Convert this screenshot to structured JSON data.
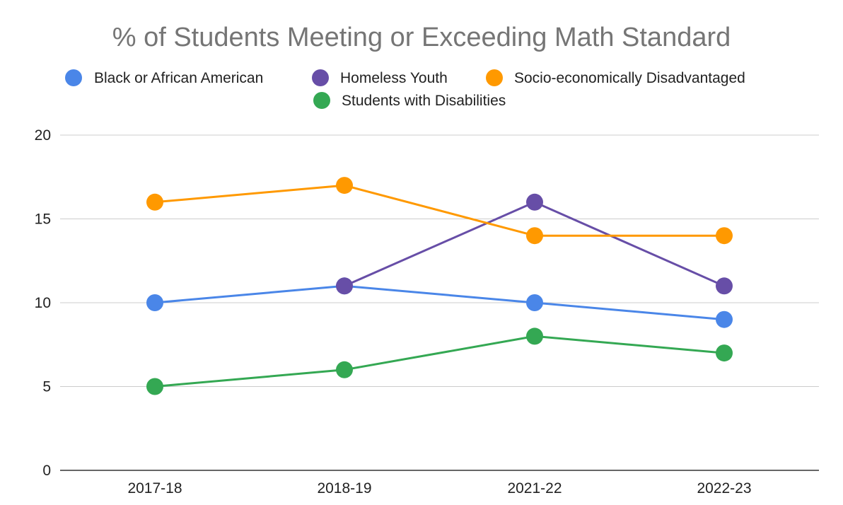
{
  "chart_data": {
    "type": "line",
    "title": "% of Students Meeting or Exceeding Math Standard",
    "xlabel": "",
    "ylabel": "",
    "categories": [
      "2017-18",
      "2018-19",
      "2021-22",
      "2022-23"
    ],
    "ylim": [
      0,
      20
    ],
    "yticks": [
      0,
      5,
      10,
      15,
      20
    ],
    "grid": true,
    "legend_position": "top",
    "series": [
      {
        "name": "Black or African American",
        "color": "#4a86e8",
        "values": [
          10,
          11,
          10,
          9
        ]
      },
      {
        "name": "Homeless Youth",
        "color": "#674ea7",
        "values": [
          null,
          11,
          16,
          11
        ]
      },
      {
        "name": "Socio-economically Disadvantaged",
        "color": "#ff9900",
        "values": [
          16,
          17,
          14,
          14
        ]
      },
      {
        "name": "Students with Disabilities",
        "color": "#34a853",
        "values": [
          5,
          6,
          8,
          7
        ]
      }
    ]
  }
}
